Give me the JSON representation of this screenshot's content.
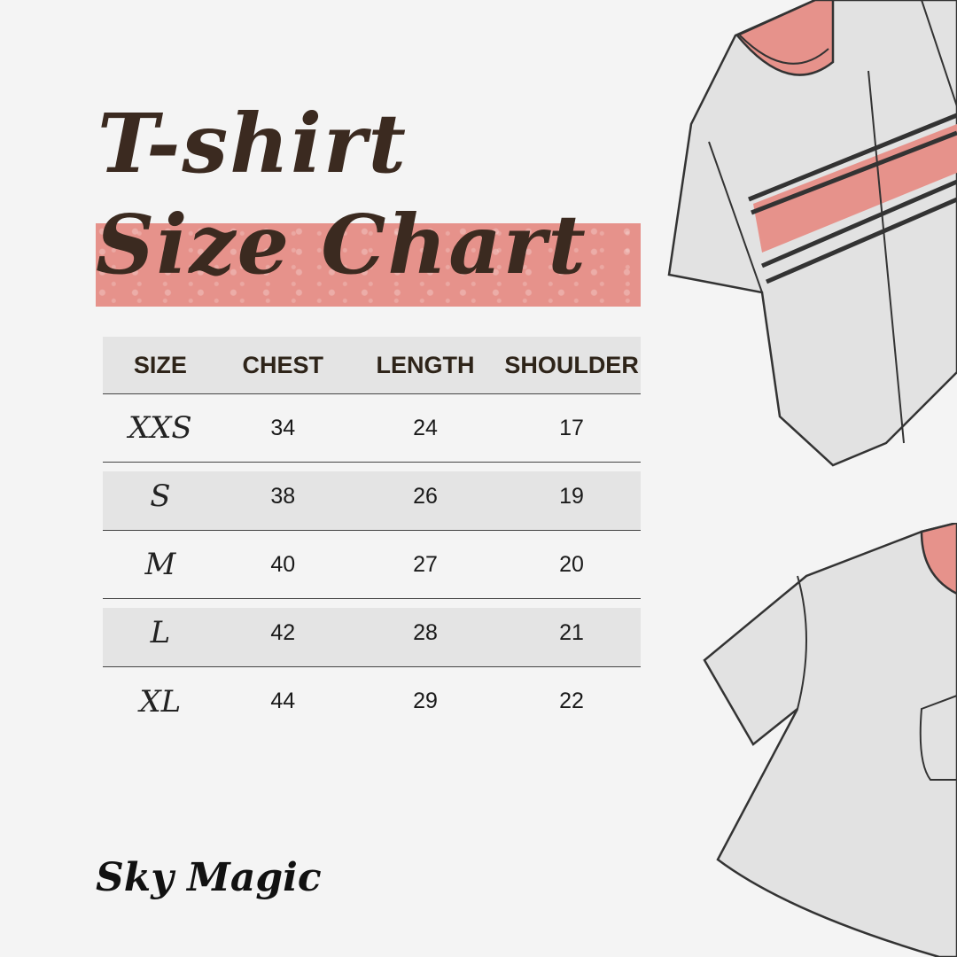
{
  "title": {
    "line1": "T-shirt",
    "line2": "Size Chart"
  },
  "table": {
    "headers": [
      "SIZE",
      "CHEST",
      "LENGTH",
      "SHOULDER"
    ],
    "rows": [
      [
        "XXS",
        "34",
        "24",
        "17"
      ],
      [
        "S",
        "38",
        "26",
        "19"
      ],
      [
        "M",
        "40",
        "27",
        "20"
      ],
      [
        "L",
        "42",
        "28",
        "21"
      ],
      [
        "XL",
        "44",
        "29",
        "22"
      ]
    ]
  },
  "brand": "Sky Magic",
  "colors": {
    "accent": "#e6928b",
    "title": "#3b2a20",
    "background": "#f4f4f4"
  }
}
